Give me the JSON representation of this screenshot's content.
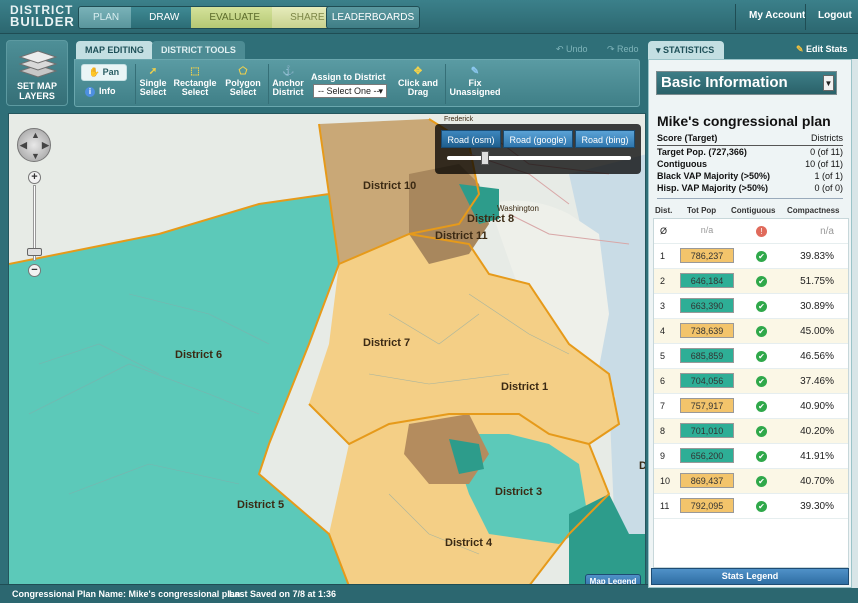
{
  "app": {
    "logo_line1": "DISTRICT",
    "logo_line2": "BUILDER"
  },
  "nav": {
    "steps": [
      "PLAN",
      "DRAW",
      "EVALUATE",
      "SHARE"
    ],
    "leaderboards": "LEADERBOARDS",
    "my_account": "My Account",
    "logout": "Logout"
  },
  "toolbar": {
    "set_map_layers": "SET MAP LAYERS",
    "tab_map_editing": "MAP EDITING",
    "tab_district_tools": "DISTRICT TOOLS",
    "undo": "Undo",
    "redo": "Redo",
    "pan": "Pan",
    "info": "Info",
    "single_select": "Single Select",
    "rectangle_select": "Rectangle Select",
    "polygon_select": "Polygon Select",
    "anchor_district": "Anchor District",
    "assign_to_district": "Assign to District",
    "select_value": "-- Select One --",
    "click_and_drag": "Click and Drag",
    "fix_unassigned": "Fix Unassigned"
  },
  "map": {
    "basemap_buttons": [
      "Road (osm)",
      "Road (google)",
      "Road (bing)"
    ],
    "basemap_selected": "Road (osm)",
    "map_legend": "Map Legend",
    "town_labels": [
      "Frederick",
      "Washington"
    ],
    "district_labels": [
      "District 10",
      "District 8",
      "District 11",
      "District 6",
      "District 7",
      "District 1",
      "District 5",
      "District 3",
      "District 4"
    ],
    "edge_marker": "D",
    "colors": {
      "teal": "#5cc9b9",
      "tan": "#f4cf86",
      "brown": "#a8875d",
      "outline": "#e69a1a",
      "land": "#e7ebe6",
      "water": "#c5d8e4"
    }
  },
  "statusbar": {
    "plan_name": "Congressional Plan Name: Mike's congressional plan",
    "last_saved": "Last Saved on 7/8 at 1:36"
  },
  "stats": {
    "tab": "STATISTICS",
    "edit_stats": "Edit Stats",
    "dropdown": "Basic Information",
    "plan_title": "Mike's congressional plan",
    "score_label": "Score (Target)",
    "score_header": "Districts",
    "metrics": [
      {
        "label": "Target Pop. (727,366)",
        "value": "0 (of 11)"
      },
      {
        "label": "Contiguous",
        "value": "10 (of 11)"
      },
      {
        "label": "Black VAP Majority (>50%)",
        "value": "1 (of 1)"
      },
      {
        "label": "Hisp. VAP Majority (>50%)",
        "value": "0 (of 0)"
      }
    ],
    "columns": [
      "Dist.",
      "Tot Pop",
      "Contiguous",
      "Compactness"
    ],
    "unassigned": {
      "dist": "Ø",
      "pop": "n/a",
      "compact": "n/a"
    },
    "rows": [
      {
        "dist": "1",
        "pop": "786,237",
        "color": "#f3c46b",
        "compact": "39.83%"
      },
      {
        "dist": "2",
        "pop": "646,184",
        "color": "#2eae96",
        "compact": "51.75%"
      },
      {
        "dist": "3",
        "pop": "663,390",
        "color": "#2eae96",
        "compact": "30.89%"
      },
      {
        "dist": "4",
        "pop": "738,639",
        "color": "#f3c46b",
        "compact": "45.00%"
      },
      {
        "dist": "5",
        "pop": "685,859",
        "color": "#2eae96",
        "compact": "46.56%"
      },
      {
        "dist": "6",
        "pop": "704,056",
        "color": "#2eae96",
        "compact": "37.46%"
      },
      {
        "dist": "7",
        "pop": "757,917",
        "color": "#f3c46b",
        "compact": "40.90%"
      },
      {
        "dist": "8",
        "pop": "701,010",
        "color": "#2eae96",
        "compact": "40.20%"
      },
      {
        "dist": "9",
        "pop": "656,200",
        "color": "#2eae96",
        "compact": "41.91%"
      },
      {
        "dist": "10",
        "pop": "869,437",
        "color": "#f3c46b",
        "compact": "40.70%"
      },
      {
        "dist": "11",
        "pop": "792,095",
        "color": "#f3c46b",
        "compact": "39.30%"
      }
    ],
    "stats_legend": "Stats Legend"
  }
}
